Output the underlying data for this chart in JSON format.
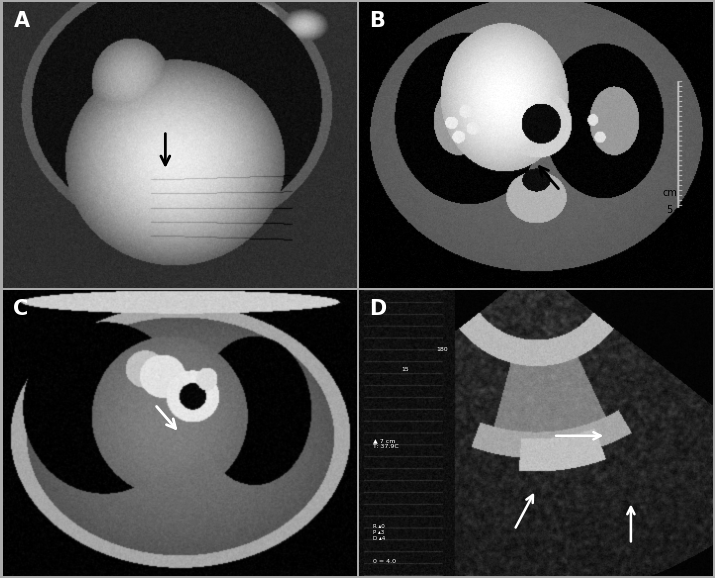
{
  "figsize": [
    7.15,
    5.78
  ],
  "dpi": 100,
  "bg_color": "#b0b0b0",
  "panels": {
    "A": {
      "label": "A",
      "label_color": "white",
      "arrow_color": "black"
    },
    "B": {
      "label": "B",
      "label_color": "white",
      "arrow_color": "black",
      "scale_label": "5\ncm"
    },
    "C": {
      "label": "C",
      "label_color": "white",
      "arrow_color": "white"
    },
    "D": {
      "label": "D",
      "label_color": "white",
      "arrow_color": "white"
    }
  }
}
